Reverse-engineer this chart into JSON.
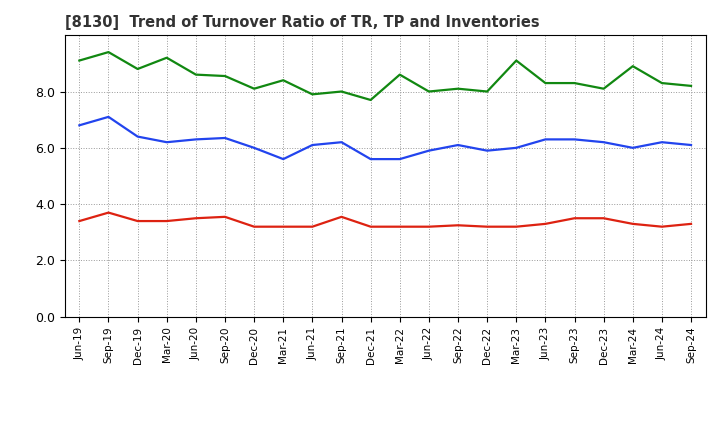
{
  "title": "[8130]  Trend of Turnover Ratio of TR, TP and Inventories",
  "x_labels": [
    "Jun-19",
    "Sep-19",
    "Dec-19",
    "Mar-20",
    "Jun-20",
    "Sep-20",
    "Dec-20",
    "Mar-21",
    "Jun-21",
    "Sep-21",
    "Dec-21",
    "Mar-22",
    "Jun-22",
    "Sep-22",
    "Dec-22",
    "Mar-23",
    "Jun-23",
    "Sep-23",
    "Dec-23",
    "Mar-24",
    "Jun-24",
    "Sep-24"
  ],
  "trade_receivables": [
    3.4,
    3.7,
    3.4,
    3.4,
    3.5,
    3.55,
    3.2,
    3.2,
    3.2,
    3.55,
    3.2,
    3.2,
    3.2,
    3.25,
    3.2,
    3.2,
    3.3,
    3.5,
    3.5,
    3.3,
    3.2,
    3.3
  ],
  "trade_payables": [
    6.8,
    7.1,
    6.4,
    6.2,
    6.3,
    6.35,
    6.0,
    5.6,
    6.1,
    6.2,
    5.6,
    5.6,
    5.9,
    6.1,
    5.9,
    6.0,
    6.3,
    6.3,
    6.2,
    6.0,
    6.2,
    6.1
  ],
  "inventories": [
    9.1,
    9.4,
    8.8,
    9.2,
    8.6,
    8.55,
    8.1,
    8.4,
    7.9,
    8.0,
    7.7,
    8.6,
    8.0,
    8.1,
    8.0,
    9.1,
    8.3,
    8.3,
    8.1,
    8.9,
    8.3,
    8.2
  ],
  "trade_receivables_color": "#dd2211",
  "trade_payables_color": "#2244ee",
  "inventories_color": "#118811",
  "ylim": [
    0,
    10
  ],
  "yticks": [
    0.0,
    2.0,
    4.0,
    6.0,
    8.0
  ],
  "background_color": "#ffffff",
  "grid_color": "#999999",
  "line_width": 1.6,
  "title_color": "#333333"
}
